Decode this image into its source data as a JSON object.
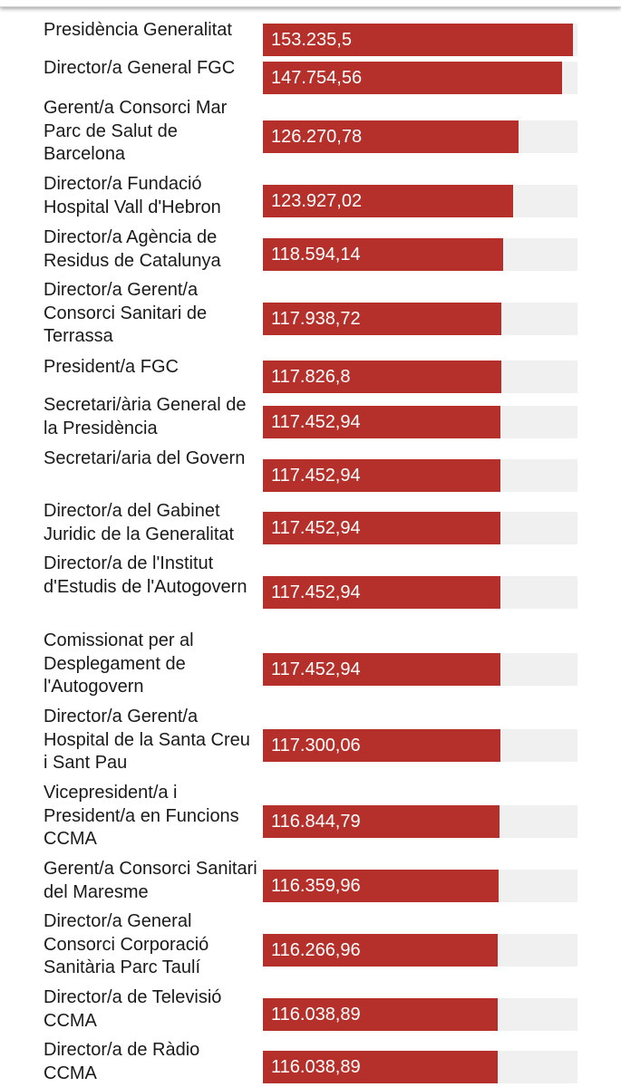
{
  "chart_data": {
    "type": "bar",
    "orientation": "horizontal",
    "bar_color": "#b5302a",
    "track_color": "#f0f0f0",
    "max_value": 153235.5,
    "categories": [
      "Presidència Generalitat",
      "Director/a General FGC",
      "Gerent/a Consorci Mar Parc de Salut de Barcelona",
      "Director/a Fundació Hospital Vall d'Hebron",
      "Director/a Agència de Residus de Catalunya",
      "Director/a Gerent/a Consorci Sanitari de Terrassa",
      "President/a FGC",
      "Secretari/ària General de la Presidència",
      "Secretari/aria del Govern",
      "Director/a del Gabinet Juridic de la Generalitat",
      "Director/a de l'Institut d'Estudis de l'Autogovern",
      "Comissionat per al Desplegament de l'Autogovern",
      "Director/a Gerent/a Hospital de la Santa Creu i Sant Pau",
      "Vicepresident/a i President/a en Funcions CCMA",
      "Gerent/a Consorci Sanitari del Maresme",
      "Director/a General Consorci Corporació Sanitària Parc Taulí",
      "Director/a de Televisió CCMA",
      "Director/a de Ràdio CCMA"
    ],
    "values": [
      153235.5,
      147754.56,
      126270.78,
      123927.02,
      118594.14,
      117938.72,
      117826.8,
      117452.94,
      117452.94,
      117452.94,
      117452.94,
      117452.94,
      117300.06,
      116844.79,
      116359.96,
      116266.96,
      116038.89,
      116038.89
    ],
    "value_labels": [
      "153.235,5",
      "147.754,56",
      "126.270,78",
      "123.927,02",
      "118.594,14",
      "117.938,72",
      "117.826,8",
      "117.452,94",
      "117.452,94",
      "117.452,94",
      "117.452,94",
      "117.452,94",
      "117.300,06",
      "116.844,79",
      "116.359,96",
      "116.266,96",
      "116.038,89",
      "116.038,89"
    ]
  }
}
